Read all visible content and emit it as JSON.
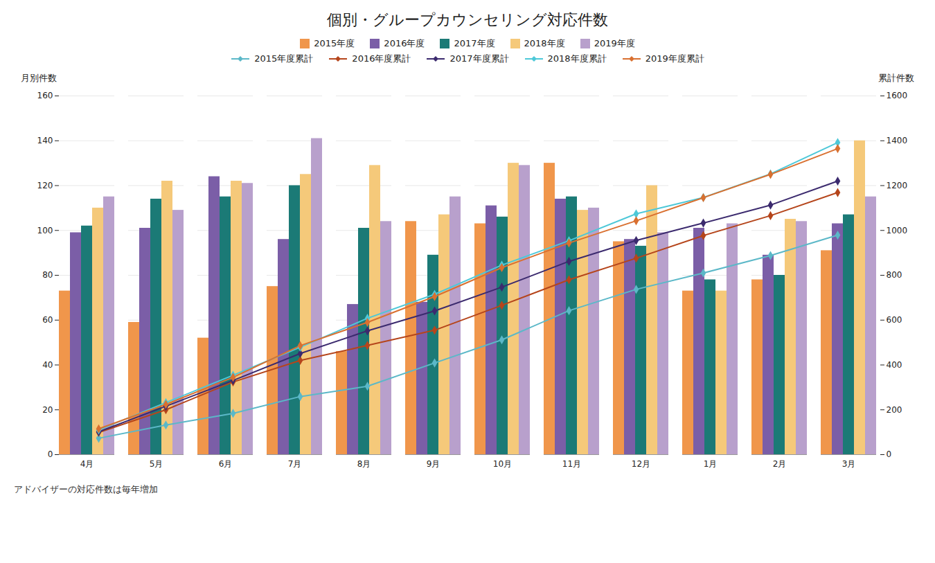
{
  "chart_data": {
    "type": "bar",
    "title": "個別・グループカウンセリング対応件数",
    "subtitle": "アドバイザーの対応件数は毎年増加",
    "ylabel": "月別件数",
    "y2label": "累計件数",
    "categories": [
      "4月",
      "5月",
      "6月",
      "7月",
      "8月",
      "9月",
      "10月",
      "11月",
      "12月",
      "1月",
      "2月",
      "3月"
    ],
    "series": [
      {
        "name": "2015年度",
        "type": "bar",
        "color": "#F0964B",
        "values": [
          73,
          59,
          52,
          75,
          46,
          104,
          103,
          130,
          95,
          73,
          78,
          91
        ]
      },
      {
        "name": "2016年度",
        "type": "bar",
        "color": "#7B5EA7",
        "values": [
          99,
          101,
          124,
          96,
          67,
          68,
          111,
          114,
          96,
          101,
          89,
          103
        ]
      },
      {
        "name": "2017年度",
        "type": "bar",
        "color": "#1B7A76",
        "values": [
          102,
          114,
          115,
          120,
          101,
          89,
          106,
          115,
          93,
          78,
          80,
          107
        ]
      },
      {
        "name": "2018年度",
        "type": "bar",
        "color": "#F5C97A",
        "values": [
          110,
          122,
          122,
          125,
          129,
          107,
          130,
          109,
          120,
          73,
          105,
          140
        ]
      },
      {
        "name": "2019年度",
        "type": "bar",
        "color": "#B8A0CC",
        "values": [
          115,
          109,
          121,
          141,
          104,
          115,
          129,
          110,
          99,
          103,
          104,
          115
        ]
      },
      {
        "name": "2015年度累計",
        "type": "line",
        "axis": "y2",
        "color": "#5BB8C8",
        "marker": "diamond",
        "values": [
          73,
          132,
          184,
          259,
          305,
          409,
          512,
          642,
          737,
          810,
          888,
          979
        ]
      },
      {
        "name": "2016年度累計",
        "type": "line",
        "axis": "y2",
        "color": "#B5451B",
        "marker": "diamond",
        "values": [
          99,
          200,
          324,
          420,
          487,
          555,
          666,
          780,
          876,
          977,
          1066,
          1169
        ]
      },
      {
        "name": "2017年度累計",
        "type": "line",
        "axis": "y2",
        "color": "#3B2A6E",
        "marker": "diamond",
        "values": [
          102,
          216,
          331,
          451,
          552,
          641,
          747,
          862,
          955,
          1033,
          1113,
          1220
        ]
      },
      {
        "name": "2018年度累計",
        "type": "line",
        "axis": "y2",
        "color": "#4DC8D8",
        "marker": "diamond",
        "values": [
          110,
          232,
          354,
          479,
          608,
          715,
          845,
          954,
          1074,
          1147,
          1252,
          1392
        ]
      },
      {
        "name": "2019年度累計",
        "type": "line",
        "axis": "y2",
        "color": "#D97030",
        "marker": "diamond",
        "values": [
          115,
          224,
          345,
          486,
          590,
          705,
          834,
          944,
          1043,
          1146,
          1250,
          1365
        ]
      }
    ],
    "ylim": [
      0,
      160
    ],
    "yticks": [
      0,
      20,
      40,
      60,
      80,
      100,
      120,
      140,
      160
    ],
    "y2lim": [
      0,
      1600
    ],
    "y2ticks": [
      0,
      200,
      400,
      600,
      800,
      1000,
      1200,
      1400,
      1600
    ],
    "grid": true,
    "legend": "top"
  }
}
